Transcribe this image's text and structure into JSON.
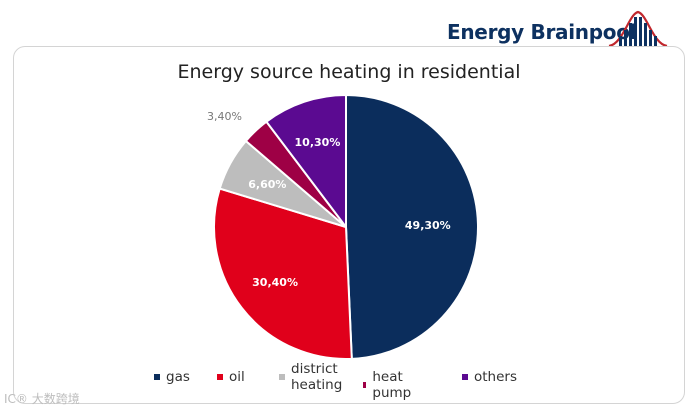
{
  "brand": {
    "name": "Energy Brainpool",
    "color": "#0d3160",
    "accent": "#c0272d"
  },
  "chart_data": {
    "type": "pie",
    "title": "Energy source heating in residential",
    "categories": [
      "gas",
      "oil",
      "district heating",
      "heat pump",
      "others"
    ],
    "values": [
      49.3,
      30.4,
      6.6,
      3.4,
      10.3
    ],
    "labels": [
      "49,30%",
      "30,40%",
      "6,60%",
      "3,40%",
      "10,30%"
    ],
    "colors": [
      "#0b2d5c",
      "#e0001b",
      "#bdbdbd",
      "#9e0045",
      "#5b0a91"
    ],
    "legend_position": "bottom"
  },
  "legend": {
    "items": [
      {
        "label": "gas",
        "lines": [
          "gas"
        ]
      },
      {
        "label": "oil",
        "lines": [
          "oil"
        ]
      },
      {
        "label": "district heating",
        "lines": [
          "district",
          "heating"
        ]
      },
      {
        "label": "heat pump",
        "lines": [
          "heat pump"
        ]
      },
      {
        "label": "others",
        "lines": [
          "others"
        ]
      }
    ]
  },
  "watermark": "IC® 大数跨境"
}
